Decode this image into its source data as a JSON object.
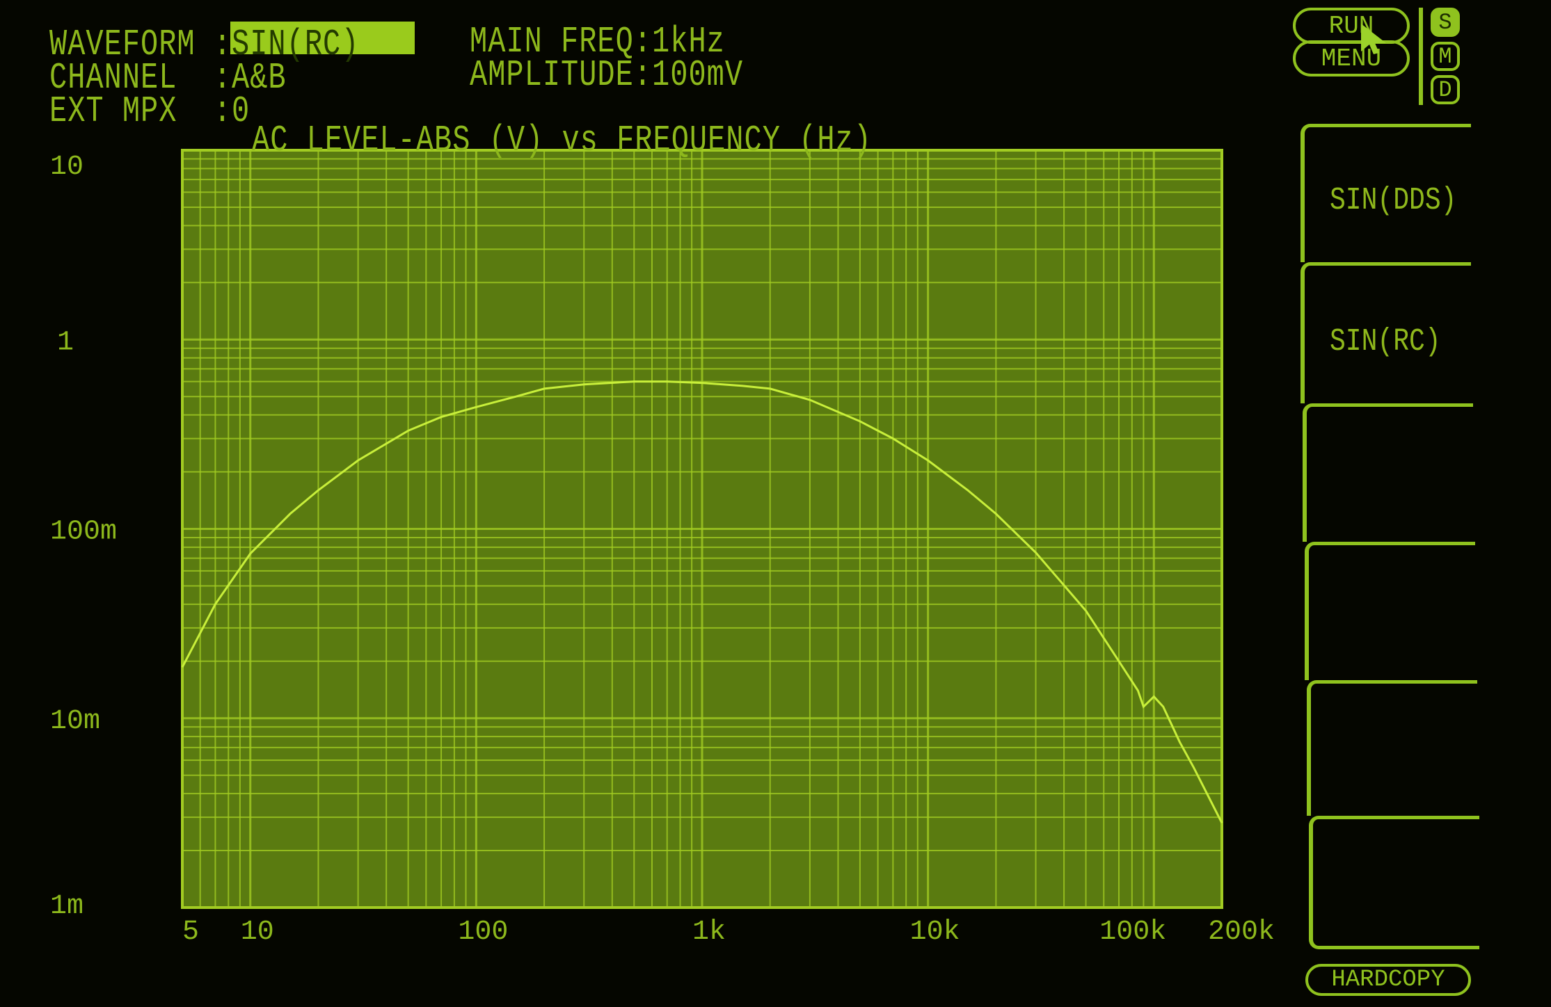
{
  "header": {
    "waveform_label": "WAVEFORM :",
    "waveform_value": "SIN(RC)",
    "channel_label": "CHANNEL  :",
    "channel_value": "A&B",
    "ext_mpx_label": "EXT MPX  :",
    "ext_mpx_value": "0",
    "main_freq": "MAIN FREQ:1kHz",
    "amplitude": "AMPLITUDE:100mV"
  },
  "top_buttons": {
    "run": "RUN",
    "menu": "MENU"
  },
  "mode_indicators": [
    {
      "label": "S",
      "active": true
    },
    {
      "label": "M",
      "active": false
    },
    {
      "label": "D",
      "active": false
    }
  ],
  "softkeys": [
    "SIN(DDS)",
    "SIN(RC)",
    "",
    "",
    "",
    ""
  ],
  "hardcopy": "HARDCOPY",
  "colors": {
    "background": "#050600",
    "plot_fill": "#5a7b10",
    "grid": "#a2cc22",
    "trace": "#c8ef3a",
    "text": "#8db81c"
  },
  "chart_data": {
    "type": "line",
    "title": "AC LEVEL-ABS (V) vs FREQUENCY (Hz)",
    "x_scale": "log",
    "y_scale": "log",
    "xlim": [
      5,
      200000
    ],
    "ylim": [
      0.001,
      10
    ],
    "grid": true,
    "x_ticks": [
      {
        "value": 5,
        "label": "5"
      },
      {
        "value": 10,
        "label": "10"
      },
      {
        "value": 100,
        "label": "100"
      },
      {
        "value": 1000,
        "label": "1k"
      },
      {
        "value": 10000,
        "label": "10k"
      },
      {
        "value": 100000,
        "label": "100k"
      },
      {
        "value": 200000,
        "label": "200k"
      }
    ],
    "y_ticks": [
      {
        "value": 10,
        "label": "10"
      },
      {
        "value": 1,
        "label": "1"
      },
      {
        "value": 0.1,
        "label": "100m"
      },
      {
        "value": 0.01,
        "label": "10m"
      },
      {
        "value": 0.001,
        "label": "1m"
      }
    ],
    "series": [
      {
        "x": [
          5,
          7,
          10,
          15,
          20,
          30,
          50,
          70,
          100,
          150,
          200,
          300,
          500,
          700,
          1000,
          1500,
          2000,
          3000,
          5000,
          7000,
          10000,
          15000,
          20000,
          30000,
          50000,
          70000,
          85000,
          90000,
          100000,
          110000,
          130000,
          150000,
          200000
        ],
        "y": [
          0.0186,
          0.04,
          0.074,
          0.12,
          0.16,
          0.23,
          0.33,
          0.39,
          0.44,
          0.5,
          0.55,
          0.58,
          0.6,
          0.6,
          0.59,
          0.57,
          0.55,
          0.48,
          0.37,
          0.3,
          0.23,
          0.16,
          0.12,
          0.075,
          0.037,
          0.02,
          0.014,
          0.0115,
          0.013,
          0.0115,
          0.0075,
          0.0055,
          0.0028
        ]
      }
    ]
  }
}
